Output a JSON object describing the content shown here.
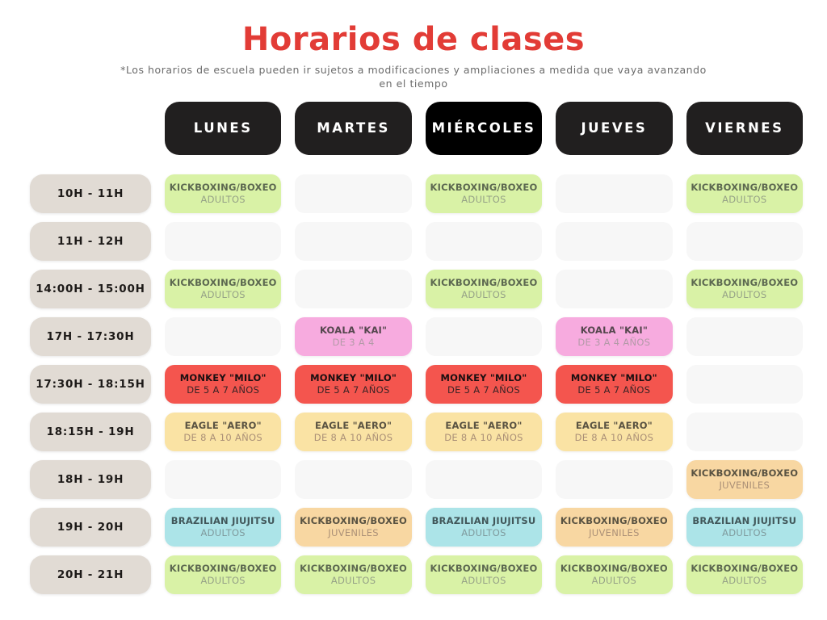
{
  "page": {
    "title": "Horarios de clases",
    "subtitle": "*Los horarios de escuela pueden ir sujetos a modificaciones y ampliaciones a medida que vaya avanzando en el tiempo"
  },
  "colors": {
    "page_bg": "#ffffff",
    "title_red": "#e23c36",
    "subtitle_gray": "#6b6b6b",
    "header_dark": "#211f1f",
    "header_black": "#000000",
    "header_text": "#ffffff",
    "time_bg": "#e1dbd4",
    "time_text": "#1d1a18",
    "empty_bg": "#f7f7f7"
  },
  "palette": {
    "green": {
      "bg": "#d9f2a6",
      "title": "#5c6850",
      "sub": "#96a287"
    },
    "orange": {
      "bg": "#f8d7a2",
      "title": "#5a5342",
      "sub": "#ab9077"
    },
    "pink": {
      "bg": "#f7abdf",
      "title": "#54464d",
      "sub": "#b49aa8"
    },
    "red": {
      "bg": "#f4554e",
      "title": "#1a0f11",
      "sub": "#3d2426"
    },
    "yellow": {
      "bg": "#fae3a4",
      "title": "#5a5342",
      "sub": "#ab9077"
    },
    "cyan": {
      "bg": "#ace4e8",
      "title": "#41575a",
      "sub": "#7f9a9d"
    }
  },
  "days": [
    {
      "label": "LUNES",
      "black": false
    },
    {
      "label": "MARTES",
      "black": false
    },
    {
      "label": "MIÉRCOLES",
      "black": true
    },
    {
      "label": "JUEVES",
      "black": false
    },
    {
      "label": "VIERNES",
      "black": false
    }
  ],
  "rows": [
    {
      "time": "10H - 11H",
      "cells": [
        {
          "title": "KICKBOXING/BOXEO",
          "subtitle": "ADULTOS",
          "color": "green"
        },
        null,
        {
          "title": "KICKBOXING/BOXEO",
          "subtitle": "ADULTOS",
          "color": "green"
        },
        null,
        {
          "title": "KICKBOXING/BOXEO",
          "subtitle": "ADULTOS",
          "color": "green"
        }
      ]
    },
    {
      "time": "11H - 12H",
      "cells": [
        null,
        null,
        null,
        null,
        null
      ]
    },
    {
      "time": "14:00H - 15:00H",
      "cells": [
        {
          "title": "KICKBOXING/BOXEO",
          "subtitle": "ADULTOS",
          "color": "green"
        },
        null,
        {
          "title": "KICKBOXING/BOXEO",
          "subtitle": "ADULTOS",
          "color": "green"
        },
        null,
        {
          "title": "KICKBOXING/BOXEO",
          "subtitle": "ADULTOS",
          "color": "green"
        }
      ]
    },
    {
      "time": "17H - 17:30H",
      "cells": [
        null,
        {
          "title": "KOALA \"KAI\"",
          "subtitle": "DE 3 A 4",
          "color": "pink"
        },
        null,
        {
          "title": "KOALA \"KAI\"",
          "subtitle": "DE 3 A 4 AÑOS",
          "color": "pink"
        },
        null
      ]
    },
    {
      "time": "17:30H - 18:15H",
      "cells": [
        {
          "title": "MONKEY \"MILO\"",
          "subtitle": "DE 5 A 7 AÑOS",
          "color": "red"
        },
        {
          "title": "MONKEY \"MILO\"",
          "subtitle": "DE 5 A 7 AÑOS",
          "color": "red"
        },
        {
          "title": "MONKEY \"MILO\"",
          "subtitle": "DE 5 A 7 AÑOS",
          "color": "red"
        },
        {
          "title": "MONKEY \"MILO\"",
          "subtitle": "DE 5 A 7 AÑOS",
          "color": "red"
        },
        null
      ]
    },
    {
      "time": "18:15H - 19H",
      "cells": [
        {
          "title": "EAGLE \"AERO\"",
          "subtitle": "DE 8 A 10 AÑOS",
          "color": "yellow"
        },
        {
          "title": "EAGLE \"AERO\"",
          "subtitle": "DE 8 A 10 AÑOS",
          "color": "yellow"
        },
        {
          "title": "EAGLE \"AERO\"",
          "subtitle": "DE 8 A 10 AÑOS",
          "color": "yellow"
        },
        {
          "title": "EAGLE \"AERO\"",
          "subtitle": "DE 8 A 10 AÑOS",
          "color": "yellow"
        },
        null
      ]
    },
    {
      "time": "18H - 19H",
      "cells": [
        null,
        null,
        null,
        null,
        {
          "title": "KICKBOXING/BOXEO",
          "subtitle": "JUVENILES",
          "color": "orange"
        }
      ]
    },
    {
      "time": "19H - 20H",
      "cells": [
        {
          "title": "BRAZILIAN JIUJITSU",
          "subtitle": "ADULTOS",
          "color": "cyan"
        },
        {
          "title": "KICKBOXING/BOXEO",
          "subtitle": "JUVENILES",
          "color": "orange"
        },
        {
          "title": "BRAZILIAN JIUJITSU",
          "subtitle": "ADULTOS",
          "color": "cyan"
        },
        {
          "title": "KICKBOXING/BOXEO",
          "subtitle": "JUVENILES",
          "color": "orange"
        },
        {
          "title": "BRAZILIAN JIUJITSU",
          "subtitle": "ADULTOS",
          "color": "cyan"
        }
      ]
    },
    {
      "time": "20H - 21H",
      "cells": [
        {
          "title": "KICKBOXING/BOXEO",
          "subtitle": "ADULTOS",
          "color": "green"
        },
        {
          "title": "KICKBOXING/BOXEO",
          "subtitle": "ADULTOS",
          "color": "green"
        },
        {
          "title": "KICKBOXING/BOXEO",
          "subtitle": "ADULTOS",
          "color": "green"
        },
        {
          "title": "KICKBOXING/BOXEO",
          "subtitle": "ADULTOS",
          "color": "green"
        },
        {
          "title": "KICKBOXING/BOXEO",
          "subtitle": "ADULTOS",
          "color": "green"
        }
      ]
    }
  ]
}
